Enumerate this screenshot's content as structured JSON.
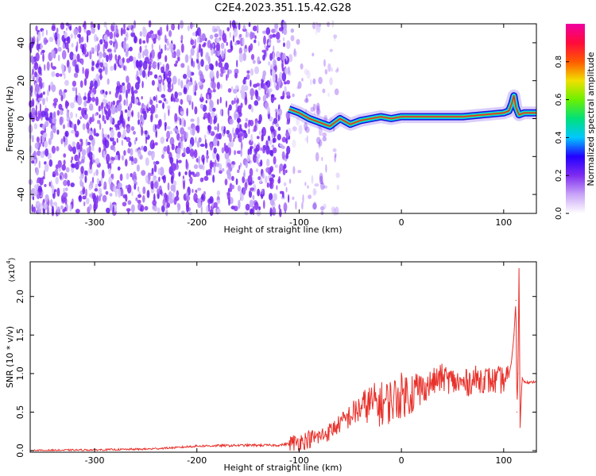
{
  "title": "C2E4.2023.351.15.42.G28",
  "chart_data": [
    {
      "type": "heatmap",
      "name": "spectrogram",
      "xlabel": "Height of straight line (km)",
      "ylabel": "Frequency (Hz)",
      "xlim": [
        -363,
        132
      ],
      "ylim": [
        -50,
        50
      ],
      "xticks": [
        -300,
        -200,
        -100,
        0,
        100
      ],
      "yticks": [
        -40,
        -20,
        0,
        20,
        40
      ],
      "colorbar": {
        "label": "Normalized spectral amplitude",
        "range": [
          0.0,
          1.0
        ],
        "ticks": [
          "0.0",
          "0.2",
          "0.4",
          "0.6",
          "0.8"
        ],
        "colors": [
          "#ffffff",
          "#c9a4f7",
          "#7f2cf0",
          "#2300ff",
          "#00c8ff",
          "#00e07a",
          "#6cf000",
          "#f0e000",
          "#ff5a00",
          "#ff0a3c",
          "#f000a0"
        ]
      },
      "noise_region_x": [
        -363,
        -62
      ],
      "signal_trace": {
        "x": [
          -110,
          -100,
          -90,
          -80,
          -70,
          -60,
          -50,
          -40,
          -30,
          -20,
          -10,
          0,
          20,
          40,
          60,
          80,
          100,
          105,
          108,
          110,
          112,
          115,
          120,
          132
        ],
        "frequency": [
          5,
          3,
          0,
          -2,
          -4,
          0,
          -3,
          -1,
          0,
          1,
          0,
          1,
          1,
          1,
          1,
          2,
          3,
          4,
          8,
          12,
          6,
          2,
          3,
          3
        ]
      }
    },
    {
      "type": "line",
      "name": "snr",
      "xlabel": "Height of straight line (km)",
      "ylabel": "SNR (10 * v/v)",
      "ylabel_scale": "(x10",
      "ylabel_exp": "4",
      "scale_factor": 10000,
      "xlim": [
        -363,
        132
      ],
      "ylim": [
        -0.02,
        2.45
      ],
      "xticks": [
        -300,
        -200,
        -100,
        0,
        100
      ],
      "yticks": [
        "0.0",
        "0.5",
        "1.0",
        "1.5",
        "2.0"
      ],
      "series": [
        {
          "color": "#e8302a",
          "x": [
            -363,
            -300,
            -250,
            -220,
            -200,
            -150,
            -120,
            -105,
            -90,
            -80,
            -70,
            -60,
            -50,
            -40,
            -30,
            -20,
            -10,
            0,
            10,
            20,
            30,
            40,
            50,
            60,
            70,
            80,
            90,
            100,
            105,
            108,
            110,
            112,
            113,
            114,
            115,
            116,
            118,
            120,
            125,
            132
          ],
          "y": [
            0.0,
            0.01,
            0.02,
            0.04,
            0.06,
            0.07,
            0.07,
            0.1,
            0.15,
            0.18,
            0.25,
            0.35,
            0.45,
            0.55,
            0.62,
            0.6,
            0.65,
            0.72,
            0.76,
            0.8,
            0.88,
            0.95,
            0.9,
            0.86,
            0.92,
            0.93,
            0.9,
            0.92,
            0.95,
            1.2,
            1.5,
            1.95,
            0.5,
            1.0,
            2.45,
            0.3,
            0.95,
            0.9,
            0.88,
            0.9
          ]
        }
      ]
    }
  ]
}
